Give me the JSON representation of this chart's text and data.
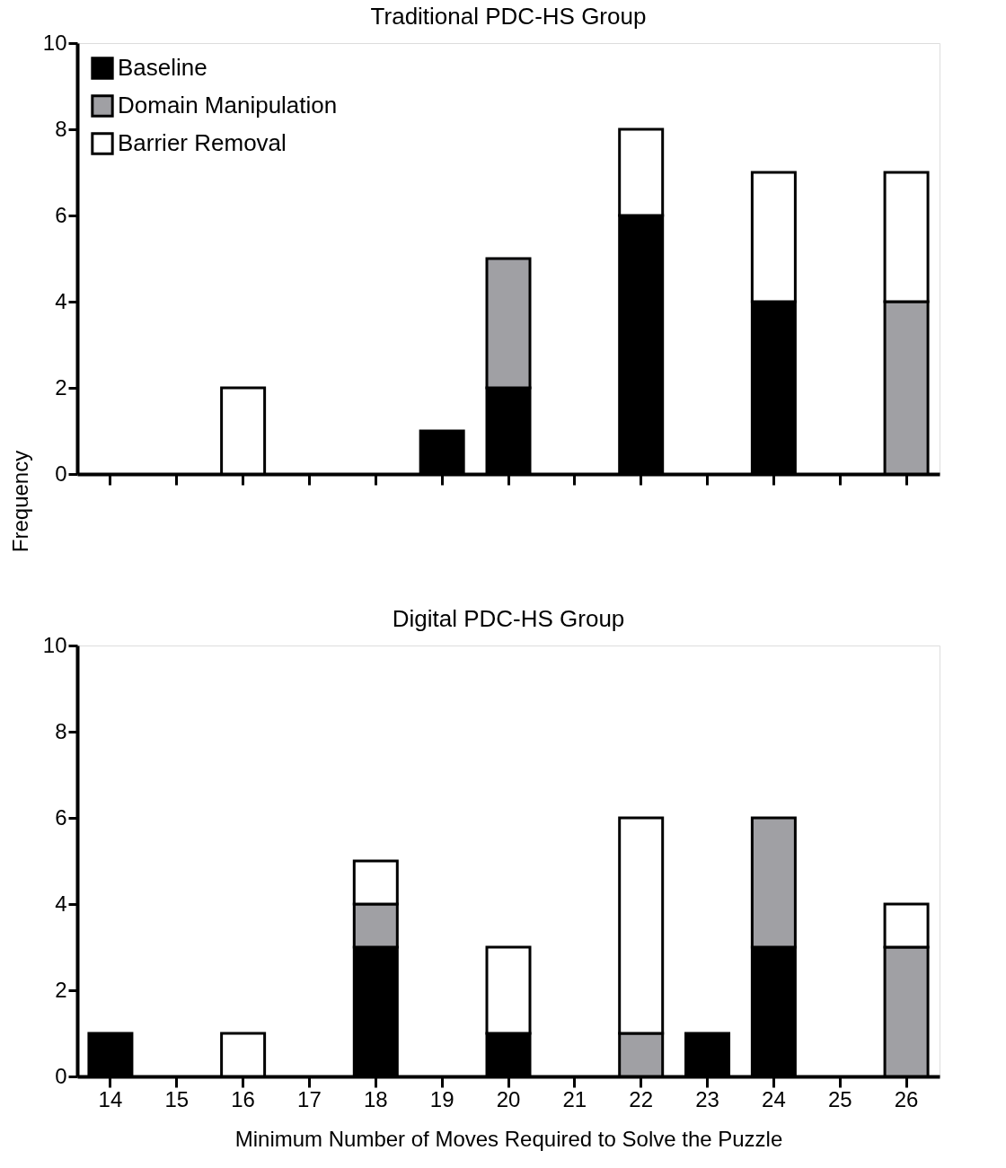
{
  "chart_data": [
    {
      "type": "bar",
      "title": "Traditional PDC-HS Group",
      "ylabel": "Frequency",
      "stacked": true,
      "categories": [
        "14",
        "15",
        "16",
        "17",
        "18",
        "19",
        "20",
        "21",
        "22",
        "23",
        "24",
        "25",
        "26"
      ],
      "series": [
        {
          "name": "Baseline",
          "color": "#000000",
          "values": [
            null,
            null,
            null,
            null,
            null,
            1,
            2,
            null,
            6,
            null,
            4,
            null,
            null
          ]
        },
        {
          "name": "Domain Manipulation",
          "color": "#a0a0a4",
          "values": [
            null,
            null,
            null,
            null,
            null,
            null,
            3,
            null,
            null,
            null,
            null,
            null,
            4
          ]
        },
        {
          "name": "Barrier Removal",
          "color": "#ffffff",
          "values": [
            null,
            null,
            2,
            null,
            null,
            null,
            null,
            null,
            2,
            null,
            3,
            null,
            3
          ]
        }
      ],
      "ylim": [
        0,
        10
      ],
      "yticks": [
        0,
        2,
        4,
        6,
        8,
        10
      ],
      "grid": false,
      "legend": "top left",
      "tick_labels": "y"
    },
    {
      "type": "bar",
      "title": "Digital PDC-HS Group",
      "xlabel": "Minimum Number of Moves Required to Solve the Puzzle",
      "stacked": true,
      "categories": [
        "14",
        "15",
        "16",
        "17",
        "18",
        "19",
        "20",
        "21",
        "22",
        "23",
        "24",
        "25",
        "26"
      ],
      "series": [
        {
          "color": "#000000",
          "values": [
            1,
            null,
            null,
            null,
            3,
            null,
            1,
            null,
            null,
            1,
            3,
            null,
            null
          ]
        },
        {
          "color": "#a0a0a4",
          "values": [
            null,
            null,
            null,
            null,
            1,
            null,
            null,
            null,
            1,
            null,
            3,
            null,
            3
          ]
        },
        {
          "color": "#ffffff",
          "values": [
            null,
            null,
            1,
            null,
            1,
            null,
            2,
            null,
            5,
            null,
            null,
            null,
            1
          ]
        }
      ],
      "ylim": [
        0,
        10
      ],
      "yticks": [
        0,
        2,
        4,
        6,
        8,
        10
      ],
      "grid": false,
      "legend": false
    }
  ]
}
